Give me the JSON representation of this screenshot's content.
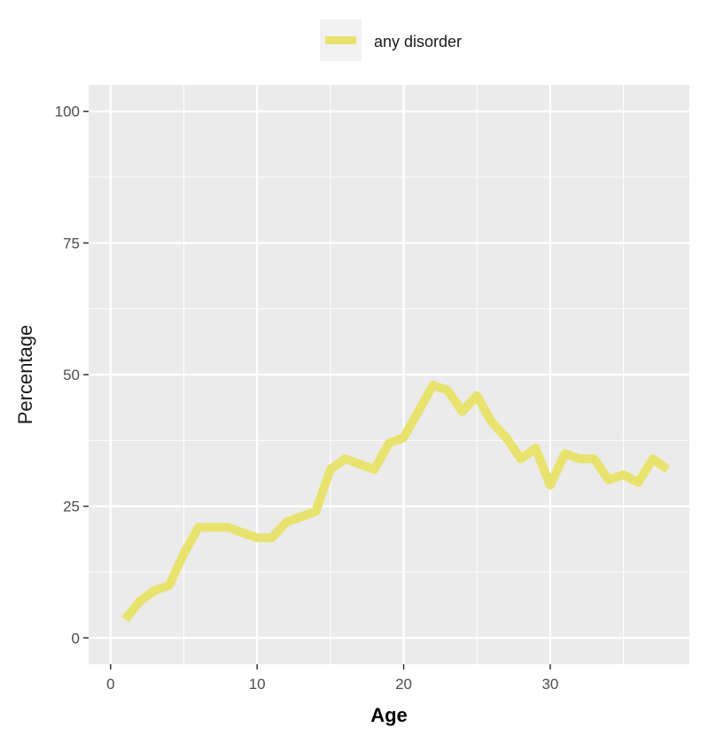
{
  "chart_data": {
    "type": "line",
    "xlabel": "Age",
    "ylabel": "Percentage",
    "xlim": [
      -1.5,
      39.5
    ],
    "ylim": [
      -5,
      105
    ],
    "x_ticks": [
      0,
      10,
      20,
      30
    ],
    "x_minor_ticks": [
      5,
      15,
      25,
      35
    ],
    "y_ticks": [
      0,
      25,
      50,
      75,
      100
    ],
    "y_minor_ticks": [
      12.5,
      37.5,
      62.5,
      87.5
    ],
    "x_tick_labels": [
      "0",
      "10",
      "20",
      "30"
    ],
    "y_tick_labels": [
      "0",
      "25",
      "50",
      "75",
      "100"
    ],
    "grid": true,
    "legend_position": "top",
    "colors": {
      "panel": "#EBEBEB",
      "grid": "#FFFFFF",
      "legend_key_bg": "#F2F2F2"
    },
    "series": [
      {
        "name": "any disorder",
        "color": "#E8E36E",
        "x": [
          1,
          2,
          3,
          4,
          5,
          6,
          7,
          8,
          9,
          10,
          11,
          12,
          13,
          14,
          15,
          16,
          17,
          18,
          19,
          20,
          21,
          22,
          23,
          24,
          25,
          26,
          27,
          28,
          29,
          30,
          31,
          32,
          33,
          34,
          35,
          36,
          37,
          38
        ],
        "y": [
          3.5,
          7,
          9,
          10,
          16,
          21,
          21,
          21,
          20,
          19,
          19,
          22,
          23,
          24,
          32,
          34,
          33,
          32,
          37,
          38,
          43,
          48,
          47,
          43,
          46,
          41,
          38,
          34,
          36,
          29,
          35,
          34,
          34,
          30,
          31,
          29.5,
          34,
          32
        ]
      }
    ]
  }
}
